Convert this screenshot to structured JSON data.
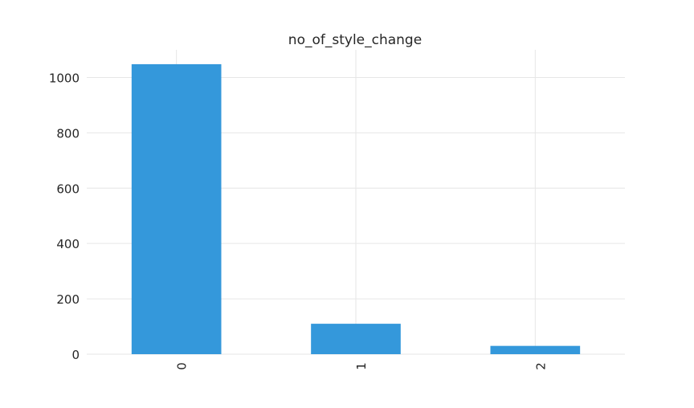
{
  "chart_data": {
    "type": "bar",
    "title": "no_of_style_change",
    "xlabel": "",
    "ylabel": "",
    "categories": [
      "0",
      "1",
      "2"
    ],
    "values": [
      1048,
      110,
      30
    ],
    "ylim": [
      0,
      1100
    ],
    "yticks": [
      0,
      200,
      400,
      600,
      800,
      1000
    ],
    "grid": true,
    "legend": "none",
    "x_tick_rotation": "vertical",
    "bar_color": "#3498db",
    "grid_color": "#e6e6e6"
  }
}
